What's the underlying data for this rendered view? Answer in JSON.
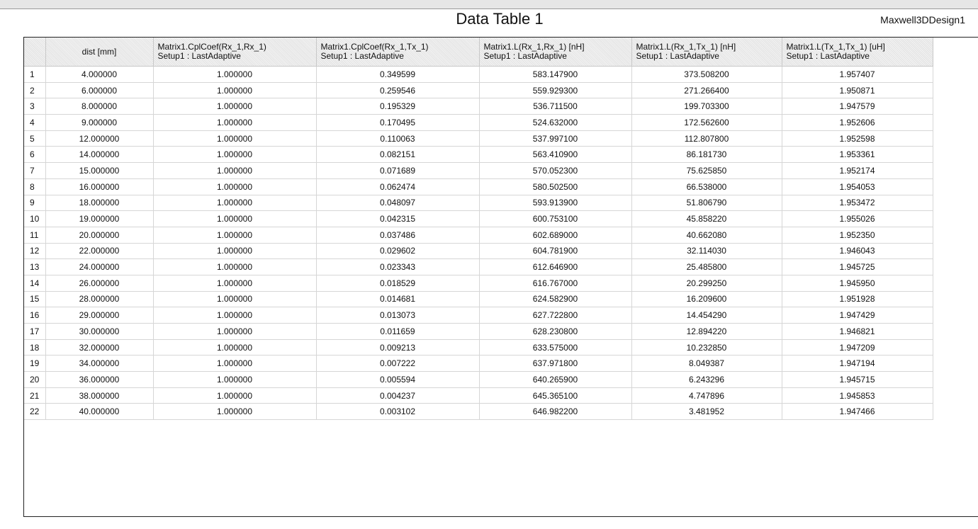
{
  "header": {
    "title": "Data Table 1",
    "design_name": "Maxwell3DDesign1"
  },
  "table": {
    "columns": [
      {
        "line1": "",
        "line2": ""
      },
      {
        "line1": "dist [mm]",
        "line2": ""
      },
      {
        "line1": "Matrix1.CplCoef(Rx_1,Rx_1)",
        "line2": "Setup1 : LastAdaptive"
      },
      {
        "line1": "Matrix1.CplCoef(Rx_1,Tx_1)",
        "line2": "Setup1 : LastAdaptive"
      },
      {
        "line1": "Matrix1.L(Rx_1,Rx_1) [nH]",
        "line2": "Setup1 : LastAdaptive"
      },
      {
        "line1": "Matrix1.L(Rx_1,Tx_1) [nH]",
        "line2": "Setup1 : LastAdaptive"
      },
      {
        "line1": "Matrix1.L(Tx_1,Tx_1) [uH]",
        "line2": "Setup1 : LastAdaptive"
      }
    ],
    "rows": [
      [
        "1",
        "4.000000",
        "1.000000",
        "0.349599",
        "583.147900",
        "373.508200",
        "1.957407"
      ],
      [
        "2",
        "6.000000",
        "1.000000",
        "0.259546",
        "559.929300",
        "271.266400",
        "1.950871"
      ],
      [
        "3",
        "8.000000",
        "1.000000",
        "0.195329",
        "536.711500",
        "199.703300",
        "1.947579"
      ],
      [
        "4",
        "9.000000",
        "1.000000",
        "0.170495",
        "524.632000",
        "172.562600",
        "1.952606"
      ],
      [
        "5",
        "12.000000",
        "1.000000",
        "0.110063",
        "537.997100",
        "112.807800",
        "1.952598"
      ],
      [
        "6",
        "14.000000",
        "1.000000",
        "0.082151",
        "563.410900",
        "86.181730",
        "1.953361"
      ],
      [
        "7",
        "15.000000",
        "1.000000",
        "0.071689",
        "570.052300",
        "75.625850",
        "1.952174"
      ],
      [
        "8",
        "16.000000",
        "1.000000",
        "0.062474",
        "580.502500",
        "66.538000",
        "1.954053"
      ],
      [
        "9",
        "18.000000",
        "1.000000",
        "0.048097",
        "593.913900",
        "51.806790",
        "1.953472"
      ],
      [
        "10",
        "19.000000",
        "1.000000",
        "0.042315",
        "600.753100",
        "45.858220",
        "1.955026"
      ],
      [
        "11",
        "20.000000",
        "1.000000",
        "0.037486",
        "602.689000",
        "40.662080",
        "1.952350"
      ],
      [
        "12",
        "22.000000",
        "1.000000",
        "0.029602",
        "604.781900",
        "32.114030",
        "1.946043"
      ],
      [
        "13",
        "24.000000",
        "1.000000",
        "0.023343",
        "612.646900",
        "25.485800",
        "1.945725"
      ],
      [
        "14",
        "26.000000",
        "1.000000",
        "0.018529",
        "616.767000",
        "20.299250",
        "1.945950"
      ],
      [
        "15",
        "28.000000",
        "1.000000",
        "0.014681",
        "624.582900",
        "16.209600",
        "1.951928"
      ],
      [
        "16",
        "29.000000",
        "1.000000",
        "0.013073",
        "627.722800",
        "14.454290",
        "1.947429"
      ],
      [
        "17",
        "30.000000",
        "1.000000",
        "0.011659",
        "628.230800",
        "12.894220",
        "1.946821"
      ],
      [
        "18",
        "32.000000",
        "1.000000",
        "0.009213",
        "633.575000",
        "10.232850",
        "1.947209"
      ],
      [
        "19",
        "34.000000",
        "1.000000",
        "0.007222",
        "637.971800",
        "8.049387",
        "1.947194"
      ],
      [
        "20",
        "36.000000",
        "1.000000",
        "0.005594",
        "640.265900",
        "6.243296",
        "1.945715"
      ],
      [
        "21",
        "38.000000",
        "1.000000",
        "0.004237",
        "645.365100",
        "4.747896",
        "1.945853"
      ],
      [
        "22",
        "40.000000",
        "1.000000",
        "0.003102",
        "646.982200",
        "3.481952",
        "1.947466"
      ]
    ]
  }
}
